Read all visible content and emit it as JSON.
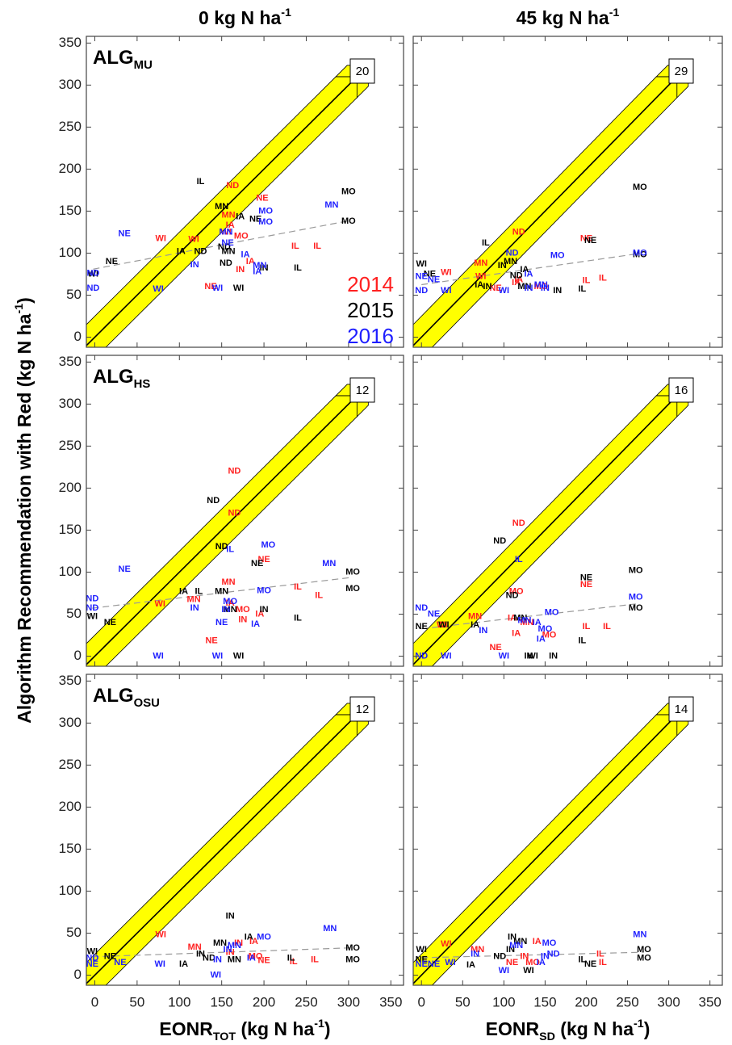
{
  "figure": {
    "columns": [
      {
        "title": [
          {
            "t": "0 kg N ha"
          },
          {
            "t": "-1",
            "s": "sup"
          }
        ],
        "x_label": [
          {
            "t": "EONR"
          },
          {
            "t": "TOT",
            "s": "sub"
          },
          {
            "t": " (kg N ha"
          },
          {
            "t": "-1",
            "s": "sup"
          },
          {
            "t": ")"
          }
        ]
      },
      {
        "title": [
          {
            "t": "45 kg N ha"
          },
          {
            "t": "-1",
            "s": "sup"
          }
        ],
        "x_label": [
          {
            "t": "EONR"
          },
          {
            "t": "SD",
            "s": "sub"
          },
          {
            "t": " (kg N ha"
          },
          {
            "t": "-1",
            "s": "sup"
          },
          {
            "t": ")"
          }
        ]
      }
    ],
    "y_label": [
      {
        "t": "Algorithm Recommendation with Red (kg N ha"
      },
      {
        "t": "-1",
        "s": "sup"
      },
      {
        "t": ")"
      }
    ]
  },
  "chart_data": [
    {
      "type": "scatter",
      "label": [
        {
          "t": "ALG"
        },
        {
          "t": "MU",
          "s": "sub"
        }
      ],
      "count": 20,
      "legend": "lower right",
      "band": 25,
      "xlim": [
        -10,
        365
      ],
      "ylim": [
        -12,
        358
      ],
      "xticks": [
        0,
        50,
        100,
        150,
        200,
        250,
        300,
        350
      ],
      "yticks": [
        0,
        50,
        100,
        150,
        200,
        250,
        300,
        350
      ],
      "series": [
        {
          "name": "2014",
          "color": "#ff2020",
          "x": [
            163,
            198,
            158,
            78,
            117,
            160,
            155,
            173,
            237,
            263,
            184,
            172,
            137
          ],
          "y": [
            180,
            165,
            145,
            117,
            116,
            133,
            125,
            120,
            108,
            108,
            90,
            80,
            60
          ],
          "labels": [
            "ND",
            "NE",
            "MN",
            "WI",
            "WI",
            "IA",
            "WI",
            "MO",
            "IL",
            "IL",
            "IA",
            "IN",
            "NE"
          ]
        },
        {
          "name": "2015",
          "color": "#000000",
          "x": [
            125,
            150,
            172,
            190,
            20,
            102,
            125,
            153,
            158,
            155,
            200,
            240,
            300,
            300,
            170,
            -2
          ],
          "y": [
            185,
            155,
            143,
            140,
            90,
            102,
            102,
            107,
            102,
            88,
            82,
            82,
            173,
            138,
            58,
            75
          ],
          "labels": [
            "IL",
            "MN",
            "IA",
            "NE",
            "NE",
            "IA",
            "ND",
            "ND",
            "MN",
            "ND",
            "IN",
            "IL",
            "MO",
            "MO",
            "WI",
            "WI"
          ]
        },
        {
          "name": "2016",
          "color": "#1f1fff",
          "x": [
            35,
            202,
            202,
            280,
            157,
            155,
            -2,
            -2,
            75,
            118,
            145,
            178,
            195,
            192
          ],
          "y": [
            123,
            150,
            137,
            157,
            112,
            125,
            58,
            76,
            57,
            86,
            58,
            98,
            85,
            78
          ],
          "labels": [
            "NE",
            "MO",
            "MO",
            "MN",
            "NE",
            "MN",
            "ND",
            "ND",
            "WI",
            "IN",
            "WI",
            "IA",
            "MN",
            "IA"
          ]
        }
      ]
    },
    {
      "type": "scatter",
      "label": [],
      "count": 29,
      "band": 25,
      "xlim": [
        -10,
        365
      ],
      "ylim": [
        -12,
        358
      ],
      "xticks": [
        0,
        50,
        100,
        150,
        200,
        250,
        300,
        350
      ],
      "yticks": [
        0,
        50,
        100,
        150,
        200,
        250,
        300,
        350
      ],
      "series": [
        {
          "color": "#ff2020",
          "x": [
            30,
            72,
            72,
            118,
            200,
            200,
            220,
            90,
            115,
            145,
            118
          ],
          "y": [
            77,
            88,
            72,
            125,
            117,
            67,
            70,
            58,
            65,
            60,
            68
          ],
          "labels": [
            "WI",
            "MN",
            "WI",
            "ND",
            "NE",
            "IL",
            "IL",
            "NE",
            "IA",
            "MO",
            "IA"
          ]
        },
        {
          "color": "#000000",
          "x": [
            0,
            78,
            115,
            108,
            98,
            125,
            205,
            265,
            265,
            195,
            165,
            70,
            80,
            10,
            125
          ],
          "y": [
            87,
            112,
            73,
            90,
            85,
            80,
            115,
            178,
            98,
            57,
            55,
            62,
            60,
            75,
            60
          ],
          "labels": [
            "WI",
            "IL",
            "ND",
            "MN",
            "IN",
            "IA",
            "NE",
            "MO",
            "MO",
            "IL",
            "IN",
            "IA",
            "IN",
            "NE",
            "MN"
          ]
        },
        {
          "color": "#1f1fff",
          "x": [
            0,
            15,
            0,
            30,
            110,
            165,
            265,
            130,
            130,
            100,
            145,
            150
          ],
          "y": [
            72,
            68,
            55,
            55,
            100,
            97,
            100,
            75,
            58,
            55,
            62,
            58
          ],
          "labels": [
            "NE",
            "NE",
            "ND",
            "WI",
            "ND",
            "MO",
            "MO",
            "IA",
            "IN",
            "WI",
            "MN",
            "IN"
          ]
        }
      ]
    },
    {
      "type": "scatter",
      "label": [
        {
          "t": "ALG"
        },
        {
          "t": "HS",
          "s": "sub"
        }
      ],
      "count": 12,
      "band": 25,
      "xlim": [
        -10,
        365
      ],
      "ylim": [
        -12,
        358
      ],
      "xticks": [
        0,
        50,
        100,
        150,
        200,
        250,
        300,
        350
      ],
      "yticks": [
        0,
        50,
        100,
        150,
        200,
        250,
        300,
        350
      ],
      "series": [
        {
          "color": "#ff2020",
          "x": [
            165,
            165,
            200,
            240,
            265,
            158,
            77,
            117,
            160,
            175,
            195,
            138,
            175
          ],
          "y": [
            220,
            170,
            115,
            82,
            72,
            88,
            62,
            67,
            63,
            55,
            50,
            18,
            43
          ],
          "labels": [
            "ND",
            "ND",
            "NE",
            "IL",
            "IL",
            "MN",
            "WI",
            "MN",
            "IA",
            "MO",
            "IA",
            "NE",
            "IN"
          ]
        },
        {
          "color": "#000000",
          "x": [
            140,
            192,
            105,
            123,
            150,
            150,
            305,
            305,
            18,
            -3,
            200,
            240,
            170,
            160
          ],
          "y": [
            185,
            110,
            77,
            77,
            77,
            130,
            100,
            80,
            40,
            47,
            55,
            45,
            0,
            55
          ],
          "labels": [
            "ND",
            "NE",
            "IA",
            "IL",
            "MN",
            "ND",
            "MO",
            "MO",
            "NE",
            "WI",
            "IN",
            "IL",
            "WI",
            "MN"
          ]
        },
        {
          "color": "#1f1fff",
          "x": [
            35,
            205,
            160,
            277,
            200,
            -3,
            -3,
            118,
            75,
            145,
            150,
            190,
            160,
            155
          ],
          "y": [
            103,
            132,
            127,
            110,
            78,
            68,
            57,
            57,
            0,
            0,
            40,
            38,
            65,
            55
          ],
          "labels": [
            "NE",
            "MO",
            "IL",
            "MN",
            "MO",
            "ND",
            "ND",
            "IN",
            "WI",
            "WI",
            "NE",
            "IA",
            "MO",
            "IN"
          ]
        }
      ]
    },
    {
      "type": "scatter",
      "label": [],
      "count": 16,
      "band": 25,
      "xlim": [
        -10,
        365
      ],
      "ylim": [
        -12,
        358
      ],
      "xticks": [
        0,
        50,
        100,
        150,
        200,
        250,
        300,
        350
      ],
      "yticks": [
        0,
        50,
        100,
        150,
        200,
        250,
        300,
        350
      ],
      "series": [
        {
          "color": "#ff2020",
          "x": [
            118,
            115,
            200,
            225,
            200,
            65,
            25,
            115,
            90,
            110,
            155,
            128
          ],
          "y": [
            158,
            77,
            35,
            35,
            85,
            47,
            37,
            27,
            10,
            45,
            25,
            40
          ],
          "labels": [
            "ND",
            "MO",
            "IL",
            "IL",
            "NE",
            "MN",
            "WI",
            "IA",
            "NE",
            "IA",
            "MO",
            "MN"
          ]
        },
        {
          "color": "#000000",
          "x": [
            95,
            110,
            200,
            260,
            260,
            195,
            65,
            0,
            160,
            130,
            120,
            135,
            27
          ],
          "y": [
            137,
            72,
            93,
            102,
            57,
            18,
            37,
            35,
            0,
            0,
            45,
            0,
            37
          ],
          "labels": [
            "ND",
            "ND",
            "NE",
            "MO",
            "MO",
            "IL",
            "IA",
            "NE",
            "IN",
            "IN",
            "MN",
            "WI",
            "WI"
          ]
        },
        {
          "color": "#1f1fff",
          "x": [
            118,
            15,
            0,
            0,
            30,
            260,
            75,
            140,
            158,
            100,
            125,
            145,
            150
          ],
          "y": [
            115,
            50,
            57,
            0,
            0,
            70,
            30,
            40,
            52,
            0,
            42,
            20,
            32
          ],
          "labels": [
            "IL",
            "NE",
            "ND",
            "ND",
            "WI",
            "MO",
            "IN",
            "IA",
            "MO",
            "WI",
            "MN",
            "IA",
            "MO"
          ]
        }
      ]
    },
    {
      "type": "scatter",
      "label": [
        {
          "t": "ALG"
        },
        {
          "t": "OSU",
          "s": "sub"
        }
      ],
      "count": 12,
      "band": 25,
      "xlim": [
        -10,
        365
      ],
      "ylim": [
        -12,
        358
      ],
      "xticks": [
        0,
        50,
        100,
        150,
        200,
        250,
        300,
        350
      ],
      "yticks": [
        0,
        50,
        100,
        150,
        200,
        250,
        300,
        350
      ],
      "series": [
        {
          "color": "#ff2020",
          "x": [
            78,
            260,
            235,
            118,
            170,
            188,
            190,
            200,
            160
          ],
          "y": [
            48,
            18,
            16,
            33,
            38,
            40,
            22,
            17,
            27
          ],
          "labels": [
            "WI",
            "IL",
            "IL",
            "MN",
            "IN",
            "IA",
            "MO",
            "NE",
            "IN"
          ]
        },
        {
          "color": "#000000",
          "x": [
            160,
            148,
            182,
            105,
            232,
            18,
            -3,
            305,
            305,
            135,
            125,
            165
          ],
          "y": [
            70,
            38,
            45,
            13,
            20,
            22,
            28,
            32,
            18,
            20,
            25,
            18
          ],
          "labels": [
            "IN",
            "MN",
            "IA",
            "IA",
            "IL",
            "NE",
            "WI",
            "MO",
            "MO",
            "ND",
            "IN",
            "MN"
          ]
        },
        {
          "color": "#1f1fff",
          "x": [
            278,
            200,
            30,
            -3,
            -3,
            77,
            143,
            157,
            165,
            185,
            145
          ],
          "y": [
            55,
            45,
            15,
            20,
            13,
            13,
            0,
            30,
            35,
            20,
            18
          ],
          "labels": [
            "MN",
            "MO",
            "NE",
            "ND",
            "NE",
            "WI",
            "WI",
            "IN",
            "MN",
            "IA",
            "IN"
          ]
        }
      ]
    },
    {
      "type": "scatter",
      "label": [],
      "count": 14,
      "band": 25,
      "xlim": [
        -10,
        365
      ],
      "ylim": [
        -12,
        358
      ],
      "xticks": [
        0,
        50,
        100,
        150,
        200,
        250,
        300,
        350
      ],
      "yticks": [
        0,
        50,
        100,
        150,
        200,
        250,
        300,
        350
      ],
      "series": [
        {
          "color": "#ff2020",
          "x": [
            30,
            220,
            217,
            68,
            140,
            110,
            125,
            135
          ],
          "y": [
            37,
            15,
            25,
            30,
            40,
            15,
            22,
            15
          ],
          "labels": [
            "WI",
            "IL",
            "IL",
            "MN",
            "IA",
            "NE",
            "IN",
            "MO"
          ]
        },
        {
          "color": "#000000",
          "x": [
            0,
            110,
            120,
            60,
            95,
            270,
            270,
            195,
            205,
            130,
            0,
            108
          ],
          "y": [
            30,
            45,
            40,
            12,
            22,
            30,
            20,
            18,
            13,
            5,
            18,
            30
          ],
          "labels": [
            "WI",
            "IN",
            "MN",
            "IA",
            "ND",
            "MO",
            "MO",
            "IL",
            "NE",
            "WI",
            "NE",
            "IN"
          ]
        },
        {
          "color": "#1f1fff",
          "x": [
            265,
            155,
            160,
            0,
            15,
            35,
            65,
            100,
            115,
            145,
            150
          ],
          "y": [
            48,
            38,
            25,
            13,
            13,
            15,
            25,
            5,
            35,
            15,
            22
          ],
          "labels": [
            "MN",
            "MO",
            "ND",
            "NE",
            "NE",
            "WI",
            "IN",
            "WI",
            "MN",
            "IA",
            "IN"
          ]
        }
      ]
    }
  ]
}
